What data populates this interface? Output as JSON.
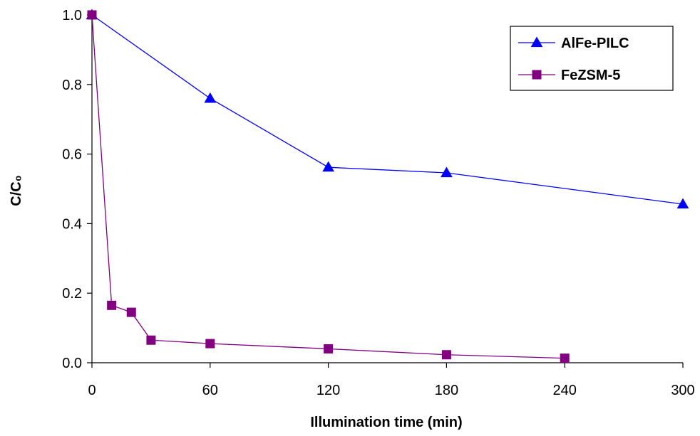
{
  "chart_data": {
    "type": "line",
    "title": "",
    "xlabel": "Illumination time (min)",
    "ylabel": "C/C₀",
    "xlim": [
      0,
      300
    ],
    "ylim": [
      0,
      1.0
    ],
    "x_ticks": [
      0,
      60,
      120,
      180,
      240,
      300
    ],
    "y_ticks": [
      0.0,
      0.2,
      0.4,
      0.6,
      0.8,
      1.0
    ],
    "x_tick_labels": [
      "0",
      "60",
      "120",
      "180",
      "240",
      "300"
    ],
    "y_tick_labels": [
      "0.0",
      "0.2",
      "0.4",
      "0.6",
      "0.8",
      "1.0"
    ],
    "grid": false,
    "legend_position": "top-right",
    "series": [
      {
        "name": "AlFe-PILC",
        "marker": "triangle",
        "color": "#0000ff",
        "x": [
          0,
          60,
          120,
          180,
          300
        ],
        "y": [
          1.0,
          0.76,
          0.562,
          0.546,
          0.456
        ]
      },
      {
        "name": "FeZSM-5",
        "marker": "square",
        "color": "#800080",
        "x": [
          0,
          10,
          20,
          30,
          60,
          120,
          180,
          240
        ],
        "y": [
          1.0,
          0.165,
          0.145,
          0.065,
          0.055,
          0.04,
          0.023,
          0.013
        ]
      }
    ]
  }
}
